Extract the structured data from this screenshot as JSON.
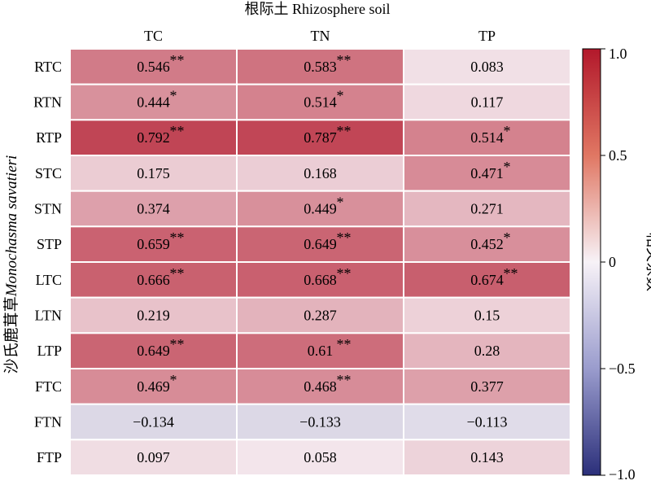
{
  "chart_data": {
    "type": "heatmap",
    "title": "根际土 Rhizosphere soil",
    "ylabel_cn": "沙氏鹿茸草",
    "ylabel_latin": "Monochasma savatieri",
    "columns": [
      "TC",
      "TN",
      "TP"
    ],
    "rows": [
      "RTC",
      "RTN",
      "RTP",
      "STC",
      "STN",
      "STP",
      "LTC",
      "LTN",
      "LTP",
      "FTC",
      "FTN",
      "FTP"
    ],
    "values": [
      [
        0.546,
        0.583,
        0.083
      ],
      [
        0.444,
        0.514,
        0.117
      ],
      [
        0.792,
        0.787,
        0.514
      ],
      [
        0.175,
        0.168,
        0.471
      ],
      [
        0.374,
        0.449,
        0.271
      ],
      [
        0.659,
        0.649,
        0.452
      ],
      [
        0.666,
        0.668,
        0.674
      ],
      [
        0.219,
        0.287,
        0.15
      ],
      [
        0.649,
        0.61,
        0.28
      ],
      [
        0.469,
        0.468,
        0.377
      ],
      [
        -0.134,
        -0.133,
        -0.113
      ],
      [
        0.097,
        0.058,
        0.143
      ]
    ],
    "labels": [
      [
        "0.546",
        "0.583",
        "0.083"
      ],
      [
        "0.444",
        "0.514",
        "0.117"
      ],
      [
        "0.792",
        "0.787",
        "0.514"
      ],
      [
        "0.175",
        "0.168",
        "0.471"
      ],
      [
        "0.374",
        "0.449",
        "0.271"
      ],
      [
        "0.659",
        "0.649",
        "0.452"
      ],
      [
        "0.666",
        "0.668",
        "0.674"
      ],
      [
        "0.219",
        "0.287",
        "0.15"
      ],
      [
        "0.649",
        "0.61",
        "0.28"
      ],
      [
        "0.469",
        "0.468",
        "0.377"
      ],
      [
        "−0.134",
        "−0.133",
        "−0.113"
      ],
      [
        "0.097",
        "0.058",
        "0.143"
      ]
    ],
    "significance": [
      [
        "**",
        "**",
        ""
      ],
      [
        "*",
        "*",
        ""
      ],
      [
        "**",
        "**",
        "*"
      ],
      [
        "",
        "",
        "*"
      ],
      [
        "",
        "*",
        ""
      ],
      [
        "**",
        "**",
        "*"
      ],
      [
        "**",
        "**",
        "**"
      ],
      [
        "",
        "",
        ""
      ],
      [
        "**",
        "**",
        ""
      ],
      [
        "*",
        "**",
        ""
      ],
      [
        "",
        "",
        ""
      ],
      [
        "",
        "",
        ""
      ]
    ],
    "colorbar": {
      "label": "相关系数",
      "range": [
        -1.0,
        1.0
      ],
      "ticks": [
        1.0,
        0.5,
        0,
        -0.5,
        -1.0
      ],
      "tick_labels": [
        "1.0",
        "0.5",
        "0",
        "−0.5",
        "−1.0"
      ],
      "colormap": "RdBu_r",
      "color_low": "#2b2f7a",
      "color_mid": "#f7f2f7",
      "color_high": "#b2182b"
    },
    "grid": true
  }
}
